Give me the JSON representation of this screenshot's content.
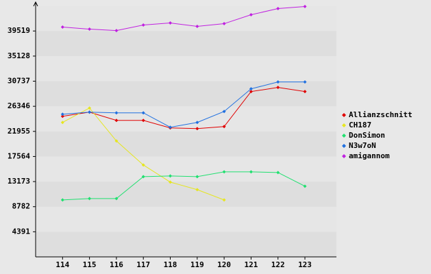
{
  "chart_data": {
    "type": "line",
    "categories": [
      "114",
      "115",
      "116",
      "117",
      "118",
      "119",
      "120",
      "121",
      "122",
      "123"
    ],
    "series": [
      {
        "name": "Allianzschnitt",
        "color": "#e00000",
        "values": [
          24600,
          25320,
          23880,
          23880,
          22560,
          22440,
          22800,
          28920,
          29640,
          28920
        ]
      },
      {
        "name": "CH187",
        "color": "#e6e620",
        "values": [
          23520,
          26040,
          20280,
          16080,
          13080,
          11760,
          9960,
          null,
          null,
          null
        ]
      },
      {
        "name": "DonSimon",
        "color": "#20e070",
        "values": [
          9960,
          10200,
          10200,
          14040,
          14160,
          14040,
          14880,
          14880,
          14760,
          12360
        ]
      },
      {
        "name": "N3w7oN",
        "color": "#2070e0",
        "values": [
          24960,
          25320,
          25200,
          25200,
          22680,
          23520,
          25440,
          29400,
          30600,
          30600
        ]
      },
      {
        "name": "amigannom",
        "color": "#c020e0",
        "values": [
          40200,
          39840,
          39600,
          40560,
          40920,
          40320,
          40800,
          42360,
          43440,
          43800
        ]
      }
    ],
    "ylim": [
      0,
      43910
    ],
    "yticks": [
      4391,
      8782,
      13173,
      17564,
      21955,
      26346,
      30737,
      35128,
      39519
    ],
    "legend": "right"
  }
}
